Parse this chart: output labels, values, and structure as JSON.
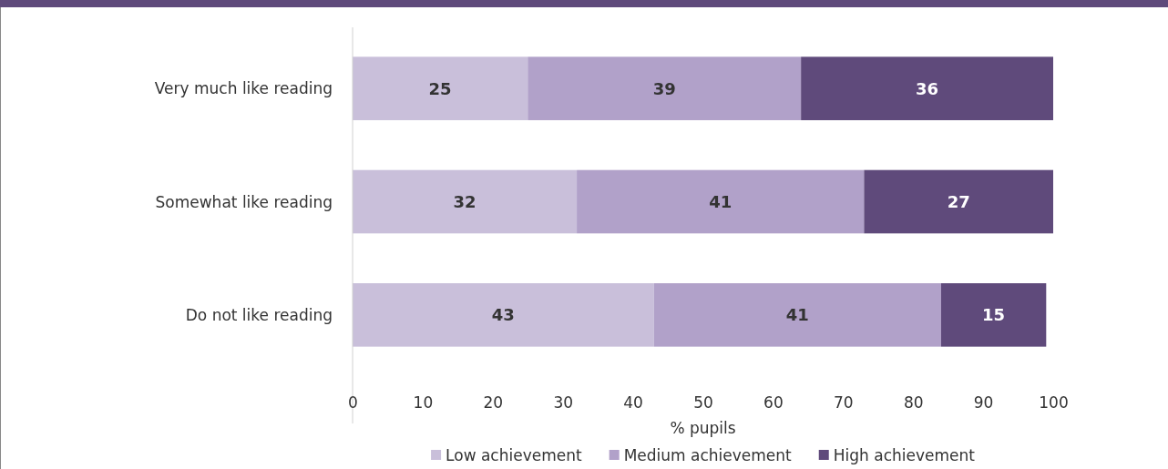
{
  "chart_data": {
    "type": "bar",
    "orientation": "horizontal",
    "stacked": true,
    "data_labels": true,
    "legend": "bottom",
    "grid": false,
    "xlabel": "% pupils",
    "categories": [
      "Very much like reading",
      "Somewhat like reading",
      "Do not like reading"
    ],
    "series": [
      {
        "name": "Low achievement",
        "color": "#c9bfda",
        "values": [
          25,
          32,
          43
        ]
      },
      {
        "name": "Medium achievement",
        "color": "#b1a1c9",
        "values": [
          39,
          41,
          41
        ]
      },
      {
        "name": "High achievement",
        "color": "#5f4a7b",
        "values": [
          36,
          27,
          15
        ]
      }
    ],
    "xlim": [
      0,
      100
    ],
    "xticks": [
      0,
      10,
      20,
      30,
      40,
      50,
      60,
      70,
      80,
      90,
      100
    ]
  }
}
